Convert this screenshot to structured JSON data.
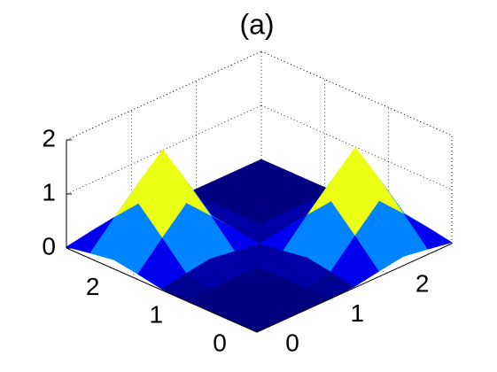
{
  "chart_data": {
    "type": "surface",
    "title": "(a)",
    "x": [
      0,
      0.375,
      0.75,
      1.125,
      1.5,
      1.875,
      2.25,
      2.625,
      3
    ],
    "y": [
      0,
      0.375,
      0.75,
      1.125,
      1.5,
      1.875,
      2.25,
      2.625,
      3
    ],
    "z": [
      [
        0,
        0,
        0,
        0,
        0.02,
        0.1,
        0.17,
        0.1,
        0.02
      ],
      [
        0,
        0,
        0,
        0,
        0.1,
        0.56,
        1.0,
        0.56,
        0.1
      ],
      [
        0,
        0,
        0,
        0.01,
        0.17,
        1.0,
        1.8,
        1.0,
        0.17
      ],
      [
        0,
        0,
        0.01,
        0,
        0.1,
        0.56,
        1.0,
        0.56,
        0.1
      ],
      [
        0.02,
        0.1,
        0.17,
        0.1,
        0.04,
        0.1,
        0.17,
        0.1,
        0.02
      ],
      [
        0.1,
        0.56,
        1.0,
        0.56,
        0.1,
        0,
        0.01,
        0,
        0
      ],
      [
        0.17,
        1.0,
        1.8,
        1.0,
        0.17,
        0.01,
        0,
        0,
        0
      ],
      [
        0.1,
        0.56,
        1.0,
        0.56,
        0.1,
        0,
        0,
        0,
        0
      ],
      [
        0.02,
        0.1,
        0.17,
        0.1,
        0.02,
        0,
        0,
        0,
        0
      ]
    ],
    "xlim": [
      0,
      3
    ],
    "ylim": [
      0,
      3
    ],
    "zlim": [
      0,
      2
    ],
    "xticks": [
      0,
      1,
      2
    ],
    "yticks": [
      0,
      1,
      2
    ],
    "zticks": [
      0,
      1,
      2
    ],
    "colormap": "jet",
    "grid": true
  }
}
